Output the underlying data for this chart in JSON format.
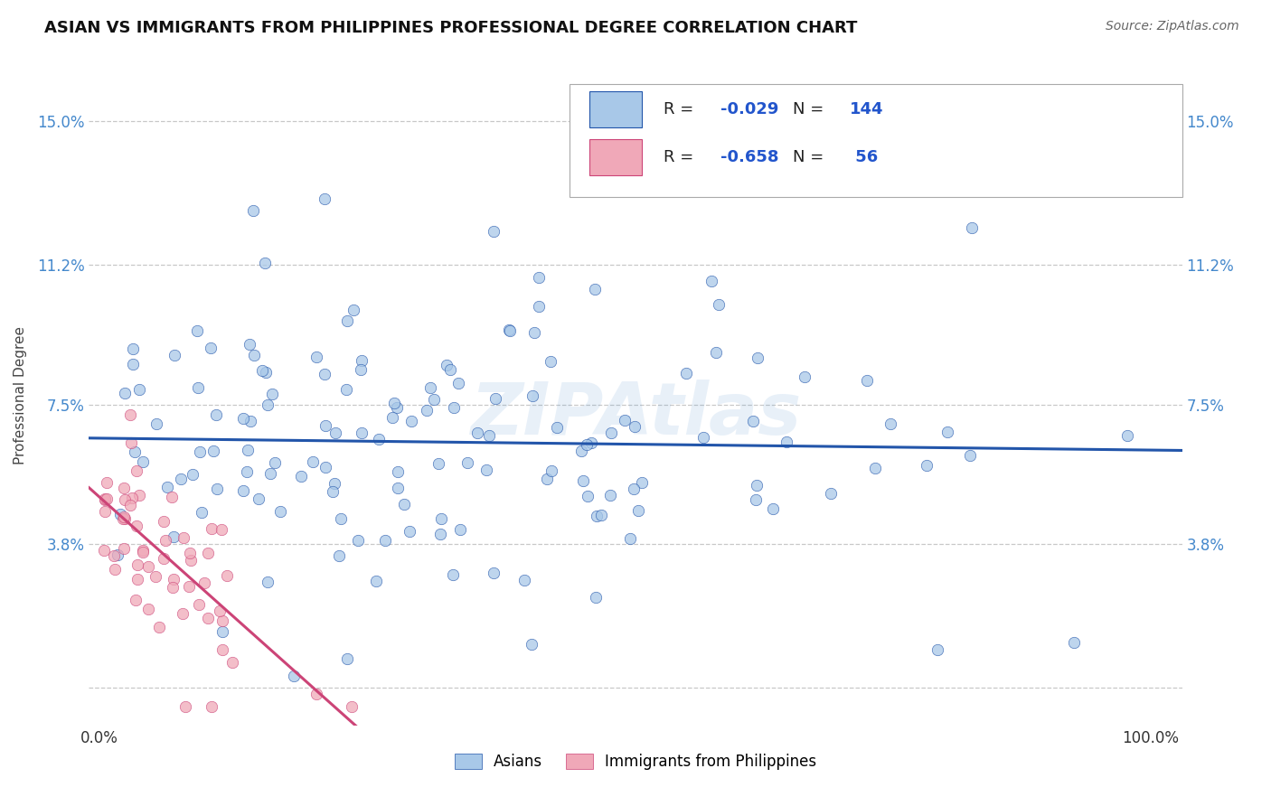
{
  "title": "ASIAN VS IMMIGRANTS FROM PHILIPPINES PROFESSIONAL DEGREE CORRELATION CHART",
  "source_text": "Source: ZipAtlas.com",
  "ylabel": "Professional Degree",
  "x_tick_labels": [
    "0.0%",
    "100.0%"
  ],
  "y_ticks": [
    0.0,
    3.8,
    7.5,
    11.2,
    15.0
  ],
  "y_tick_labels": [
    "",
    "3.8%",
    "7.5%",
    "11.2%",
    "15.0%"
  ],
  "xlim": [
    -1,
    103
  ],
  "ylim": [
    -1.0,
    16.5
  ],
  "grid_color": "#c8c8c8",
  "background_color": "#ffffff",
  "blue_color": "#a8c8e8",
  "blue_line_color": "#2255aa",
  "pink_color": "#f0a8b8",
  "pink_line_color": "#cc4477",
  "tick_color": "#4488cc",
  "legend_label1": "Asians",
  "legend_label2": "Immigrants from Philippines",
  "watermark": "ZIPAtlas",
  "R1": -0.029,
  "N1": 144,
  "R2": -0.658,
  "N2": 56,
  "r1_str": "-0.029",
  "n1_str": "144",
  "r2_str": "-0.658",
  "n2_str": " 56",
  "title_fontsize": 13,
  "axis_label_fontsize": 11,
  "tick_fontsize": 12,
  "source_fontsize": 10,
  "legend_fontsize": 13,
  "seed1": 42,
  "seed2": 7
}
